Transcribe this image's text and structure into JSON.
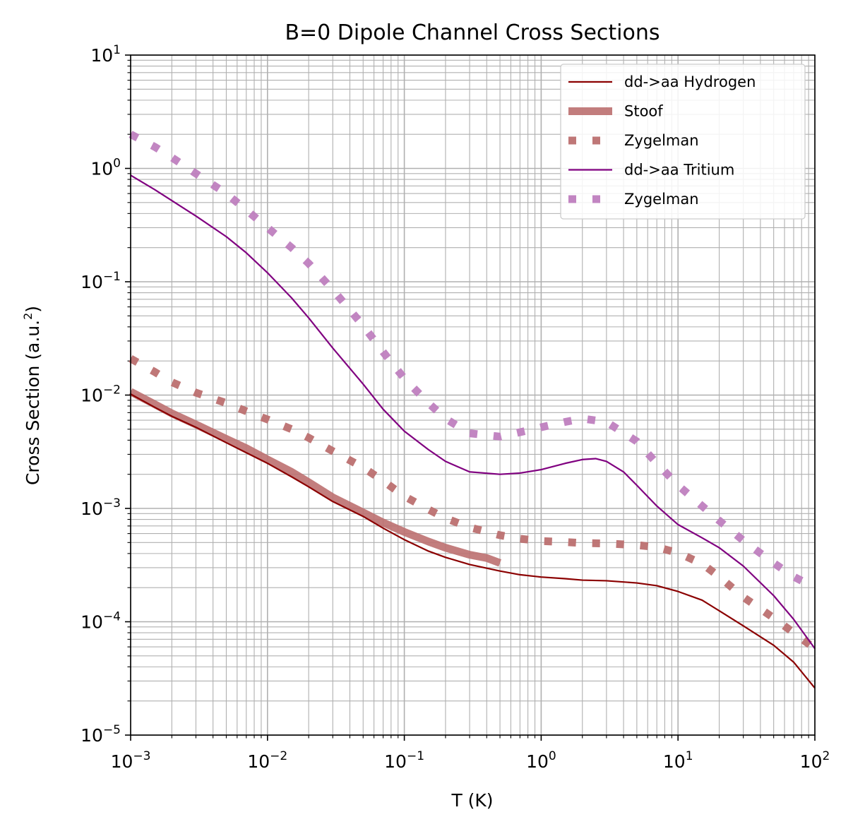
{
  "chart_data": {
    "type": "line",
    "title": "B=0 Dipole Channel Cross Sections",
    "xlabel": "T (K)",
    "ylabel_main": "Cross Section (a.u.",
    "ylabel_sup": "2",
    "ylabel_end": ")",
    "x_scale": "log",
    "y_scale": "log",
    "xlim": [
      0.001,
      100
    ],
    "ylim": [
      1e-05,
      10
    ],
    "grid": true,
    "legend_position": "top-right",
    "x_ticks": [
      {
        "base": "10",
        "exp": "−3"
      },
      {
        "base": "10",
        "exp": "−2"
      },
      {
        "base": "10",
        "exp": "−1"
      },
      {
        "base": "10",
        "exp": "0"
      },
      {
        "base": "10",
        "exp": "1"
      },
      {
        "base": "10",
        "exp": "2"
      }
    ],
    "y_ticks": [
      {
        "base": "10",
        "exp": "−5"
      },
      {
        "base": "10",
        "exp": "−4"
      },
      {
        "base": "10",
        "exp": "−3"
      },
      {
        "base": "10",
        "exp": "−2"
      },
      {
        "base": "10",
        "exp": "−1"
      },
      {
        "base": "10",
        "exp": "0"
      },
      {
        "base": "10",
        "exp": "1"
      }
    ],
    "series": [
      {
        "name": "dd->aa Hydrogen",
        "color": "#8b0000",
        "style": "solid-thin",
        "x": [
          0.001,
          0.0015,
          0.002,
          0.003,
          0.005,
          0.007,
          0.01,
          0.015,
          0.02,
          0.03,
          0.05,
          0.07,
          0.1,
          0.15,
          0.2,
          0.3,
          0.5,
          0.7,
          1,
          1.5,
          2,
          3,
          5,
          7,
          10,
          15,
          20,
          30,
          50,
          70,
          100
        ],
        "y": [
          0.0102,
          0.0078,
          0.0065,
          0.0052,
          0.0038,
          0.0031,
          0.0025,
          0.0019,
          0.00155,
          0.00115,
          0.00085,
          0.00067,
          0.00053,
          0.00042,
          0.00037,
          0.00032,
          0.00028,
          0.00026,
          0.000248,
          0.00024,
          0.000233,
          0.00023,
          0.00022,
          0.000208,
          0.000185,
          0.000155,
          0.000125,
          9.2e-05,
          6.2e-05,
          4.4e-05,
          2.6e-05
        ]
      },
      {
        "name": "Stoof",
        "color": "#bc7070",
        "style": "solid-thick",
        "x": [
          0.001,
          0.0015,
          0.002,
          0.003,
          0.005,
          0.007,
          0.01,
          0.015,
          0.02,
          0.03,
          0.05,
          0.07,
          0.1,
          0.15,
          0.2,
          0.3,
          0.4,
          0.5
        ],
        "y": [
          0.0107,
          0.0083,
          0.0069,
          0.0055,
          0.0041,
          0.0034,
          0.0027,
          0.0021,
          0.0017,
          0.00125,
          0.00092,
          0.00075,
          0.00062,
          0.00051,
          0.00045,
          0.00039,
          0.000365,
          0.00033
        ]
      },
      {
        "name": "Zygelman",
        "color": "#bc7070",
        "style": "dotted",
        "x": [
          0.001,
          0.0015,
          0.002,
          0.003,
          0.005,
          0.007,
          0.01,
          0.015,
          0.02,
          0.03,
          0.05,
          0.07,
          0.1,
          0.15,
          0.2,
          0.3,
          0.5,
          0.7,
          1,
          1.5,
          2,
          3,
          5,
          7,
          10,
          15,
          20,
          30,
          50,
          70,
          100
        ],
        "y": [
          0.021,
          0.016,
          0.013,
          0.0105,
          0.0085,
          0.0072,
          0.0061,
          0.005,
          0.0042,
          0.0032,
          0.0023,
          0.00175,
          0.00128,
          0.00098,
          0.00082,
          0.00068,
          0.00058,
          0.00054,
          0.000515,
          0.000505,
          0.000495,
          0.00049,
          0.000475,
          0.000455,
          0.000405,
          0.000325,
          0.00025,
          0.000165,
          0.000108,
          8e-05,
          5.8e-05
        ]
      },
      {
        "name": "dd->aa Tritium",
        "color": "#800080",
        "style": "solid-thin",
        "x": [
          0.001,
          0.0015,
          0.002,
          0.003,
          0.005,
          0.007,
          0.01,
          0.015,
          0.02,
          0.03,
          0.05,
          0.07,
          0.1,
          0.15,
          0.2,
          0.3,
          0.5,
          0.7,
          1,
          1.5,
          2,
          2.5,
          3,
          4,
          5,
          7,
          10,
          15,
          20,
          30,
          50,
          70,
          100
        ],
        "y": [
          0.87,
          0.65,
          0.52,
          0.38,
          0.25,
          0.18,
          0.12,
          0.072,
          0.048,
          0.026,
          0.0125,
          0.0075,
          0.0048,
          0.0033,
          0.0026,
          0.0021,
          0.002,
          0.00205,
          0.0022,
          0.0025,
          0.0027,
          0.00275,
          0.0026,
          0.0021,
          0.0016,
          0.00105,
          0.00072,
          0.00055,
          0.00045,
          0.00031,
          0.00017,
          0.000105,
          5.8e-05
        ]
      },
      {
        "name": "Zygelman",
        "color": "#bf7fbf",
        "style": "dotted",
        "x": [
          0.001,
          0.0015,
          0.002,
          0.003,
          0.005,
          0.007,
          0.01,
          0.015,
          0.02,
          0.03,
          0.05,
          0.07,
          0.1,
          0.15,
          0.2,
          0.3,
          0.5,
          0.7,
          1,
          1.5,
          2,
          3,
          5,
          7,
          10,
          15,
          20,
          30,
          50,
          70,
          100
        ],
        "y": [
          2.0,
          1.55,
          1.25,
          0.9,
          0.6,
          0.43,
          0.3,
          0.2,
          0.145,
          0.085,
          0.041,
          0.024,
          0.014,
          0.0085,
          0.0062,
          0.0046,
          0.0043,
          0.0047,
          0.0052,
          0.0058,
          0.0062,
          0.0058,
          0.0039,
          0.0025,
          0.0016,
          0.00105,
          0.00078,
          0.00052,
          0.00033,
          0.00025,
          0.0002
        ]
      }
    ]
  }
}
